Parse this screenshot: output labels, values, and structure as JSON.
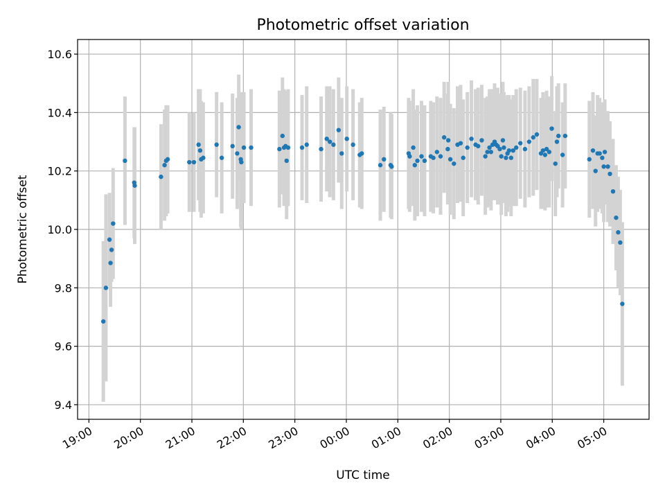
{
  "chart_data": {
    "type": "scatter",
    "title": "Photometric offset variation",
    "xlabel": "UTC time",
    "ylabel": "Photometric offset",
    "xlim": [
      -0.22,
      10.88
    ],
    "ylim": [
      9.35,
      10.65
    ],
    "xticks": [
      0,
      1,
      2,
      3,
      4,
      5,
      6,
      7,
      8,
      9,
      10
    ],
    "xtick_labels": [
      "19:00",
      "20:00",
      "21:00",
      "22:00",
      "23:00",
      "00:00",
      "01:00",
      "02:00",
      "03:00",
      "04:00",
      "05:00"
    ],
    "yticks": [
      9.4,
      9.6,
      9.8,
      10.0,
      10.2,
      10.4,
      10.6
    ],
    "ytick_labels": [
      "9.4",
      "9.6",
      "9.8",
      "10.0",
      "10.2",
      "10.4",
      "10.6"
    ],
    "grid": true,
    "x_units": "hours after 19:00 UTC",
    "marker_color": "#1f77b4",
    "errorbar_color": "#d3d3d3",
    "series": [
      {
        "name": "offset",
        "points": [
          [
            0.28,
            9.685,
            0.275
          ],
          [
            0.33,
            9.8,
            0.32
          ],
          [
            0.4,
            9.965,
            0.16
          ],
          [
            0.42,
            9.885,
            0.15
          ],
          [
            0.44,
            9.93,
            0.11
          ],
          [
            0.47,
            10.02,
            0.19
          ],
          [
            0.7,
            10.235,
            0.22
          ],
          [
            0.88,
            10.16,
            0.19
          ],
          [
            0.89,
            10.15,
            0.2
          ],
          [
            1.4,
            10.18,
            0.18
          ],
          [
            1.47,
            10.22,
            0.19
          ],
          [
            1.5,
            10.235,
            0.19
          ],
          [
            1.53,
            10.24,
            0.185
          ],
          [
            1.95,
            10.23,
            0.17
          ],
          [
            2.04,
            10.23,
            0.17
          ],
          [
            2.13,
            10.29,
            0.19
          ],
          [
            2.16,
            10.27,
            0.21
          ],
          [
            2.18,
            10.24,
            0.2
          ],
          [
            2.22,
            10.245,
            0.19
          ],
          [
            2.48,
            10.29,
            0.18
          ],
          [
            2.58,
            10.245,
            0.19
          ],
          [
            2.79,
            10.285,
            0.18
          ],
          [
            2.88,
            10.26,
            0.19
          ],
          [
            2.91,
            10.35,
            0.18
          ],
          [
            2.95,
            10.24,
            0.23
          ],
          [
            2.96,
            10.23,
            0.23
          ],
          [
            3.01,
            10.28,
            0.19
          ],
          [
            3.15,
            10.28,
            0.2
          ],
          [
            3.7,
            10.275,
            0.2
          ],
          [
            3.76,
            10.32,
            0.2
          ],
          [
            3.79,
            10.28,
            0.2
          ],
          [
            3.82,
            10.285,
            0.19
          ],
          [
            3.84,
            10.235,
            0.2
          ],
          [
            3.87,
            10.28,
            0.2
          ],
          [
            4.14,
            10.28,
            0.18
          ],
          [
            4.23,
            10.29,
            0.2
          ],
          [
            4.51,
            10.275,
            0.18
          ],
          [
            4.62,
            10.31,
            0.18
          ],
          [
            4.68,
            10.3,
            0.19
          ],
          [
            4.75,
            10.29,
            0.19
          ],
          [
            4.85,
            10.34,
            0.18
          ],
          [
            4.91,
            10.26,
            0.19
          ],
          [
            5.01,
            10.31,
            0.18
          ],
          [
            5.13,
            10.29,
            0.19
          ],
          [
            5.26,
            10.255,
            0.18
          ],
          [
            5.3,
            10.26,
            0.19
          ],
          [
            5.66,
            10.22,
            0.19
          ],
          [
            5.73,
            10.24,
            0.18
          ],
          [
            5.86,
            10.22,
            0.18
          ],
          [
            5.88,
            10.215,
            0.18
          ],
          [
            6.21,
            10.26,
            0.19
          ],
          [
            6.23,
            10.25,
            0.19
          ],
          [
            6.3,
            10.28,
            0.2
          ],
          [
            6.33,
            10.22,
            0.19
          ],
          [
            6.38,
            10.235,
            0.19
          ],
          [
            6.46,
            10.25,
            0.19
          ],
          [
            6.52,
            10.235,
            0.19
          ],
          [
            6.64,
            10.25,
            0.19
          ],
          [
            6.69,
            10.245,
            0.19
          ],
          [
            6.76,
            10.265,
            0.19
          ],
          [
            6.83,
            10.25,
            0.2
          ],
          [
            6.9,
            10.315,
            0.19
          ],
          [
            6.97,
            10.275,
            0.19
          ],
          [
            6.98,
            10.305,
            0.2
          ],
          [
            7.02,
            10.24,
            0.19
          ],
          [
            7.09,
            10.225,
            0.19
          ],
          [
            7.16,
            10.29,
            0.2
          ],
          [
            7.22,
            10.295,
            0.2
          ],
          [
            7.27,
            10.245,
            0.2
          ],
          [
            7.35,
            10.28,
            0.19
          ],
          [
            7.43,
            10.31,
            0.2
          ],
          [
            7.51,
            10.29,
            0.19
          ],
          [
            7.56,
            10.285,
            0.2
          ],
          [
            7.63,
            10.305,
            0.19
          ],
          [
            7.7,
            10.25,
            0.2
          ],
          [
            7.74,
            10.265,
            0.19
          ],
          [
            7.78,
            10.28,
            0.2
          ],
          [
            7.81,
            10.265,
            0.2
          ],
          [
            7.84,
            10.29,
            0.19
          ],
          [
            7.88,
            10.3,
            0.2
          ],
          [
            7.91,
            10.29,
            0.19
          ],
          [
            7.94,
            10.285,
            0.2
          ],
          [
            7.98,
            10.275,
            0.19
          ],
          [
            8.01,
            10.25,
            0.2
          ],
          [
            8.04,
            10.305,
            0.2
          ],
          [
            8.06,
            10.28,
            0.19
          ],
          [
            8.1,
            10.245,
            0.2
          ],
          [
            8.13,
            10.26,
            0.2
          ],
          [
            8.16,
            10.27,
            0.19
          ],
          [
            8.2,
            10.245,
            0.2
          ],
          [
            8.24,
            10.27,
            0.19
          ],
          [
            8.3,
            10.28,
            0.2
          ],
          [
            8.38,
            10.295,
            0.19
          ],
          [
            8.47,
            10.275,
            0.2
          ],
          [
            8.55,
            10.3,
            0.19
          ],
          [
            8.63,
            10.315,
            0.2
          ],
          [
            8.7,
            10.325,
            0.19
          ],
          [
            8.78,
            10.26,
            0.19
          ],
          [
            8.82,
            10.27,
            0.2
          ],
          [
            8.86,
            10.255,
            0.19
          ],
          [
            8.89,
            10.275,
            0.2
          ],
          [
            8.94,
            10.265,
            0.19
          ],
          [
            8.99,
            10.345,
            0.18
          ],
          [
            9.06,
            10.225,
            0.18
          ],
          [
            9.09,
            10.3,
            0.19
          ],
          [
            9.12,
            10.32,
            0.18
          ],
          [
            9.2,
            10.255,
            0.18
          ],
          [
            9.25,
            10.32,
            0.18
          ],
          [
            9.72,
            10.24,
            0.2
          ],
          [
            9.79,
            10.27,
            0.2
          ],
          [
            9.84,
            10.2,
            0.19
          ],
          [
            9.88,
            10.26,
            0.2
          ],
          [
            9.92,
            10.26,
            0.19
          ],
          [
            9.97,
            10.245,
            0.19
          ],
          [
            10.0,
            10.215,
            0.19
          ],
          [
            10.02,
            10.265,
            0.18
          ],
          [
            10.08,
            10.215,
            0.19
          ],
          [
            10.12,
            10.19,
            0.18
          ],
          [
            10.18,
            10.13,
            0.18
          ],
          [
            10.24,
            10.04,
            0.18
          ],
          [
            10.28,
            9.99,
            0.19
          ],
          [
            10.32,
            9.955,
            0.18
          ],
          [
            10.36,
            9.745,
            0.28
          ]
        ]
      }
    ]
  }
}
